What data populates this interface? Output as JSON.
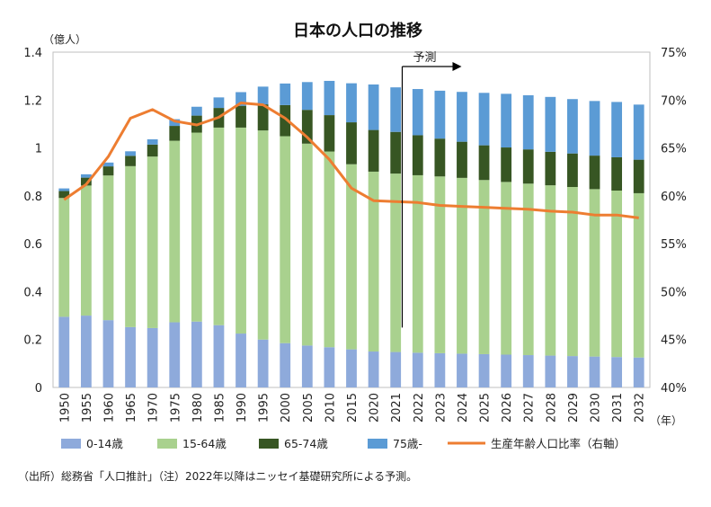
{
  "chart_data": {
    "type": "bar",
    "stacked": true,
    "title": "日本の人口の推移",
    "left_axis_unit": "（億人）",
    "x_axis_unit": "（年）",
    "categories": [
      "1950",
      "1955",
      "1960",
      "1965",
      "1970",
      "1975",
      "1980",
      "1985",
      "1990",
      "1995",
      "2000",
      "2005",
      "2010",
      "2015",
      "2020",
      "2021",
      "2022",
      "2023",
      "2024",
      "2025",
      "2026",
      "2027",
      "2028",
      "2029",
      "2030",
      "2031",
      "2032"
    ],
    "ylim": [
      0,
      1.4
    ],
    "y_ticks": [
      0,
      0.2,
      0.4,
      0.6,
      0.8,
      1,
      1.2,
      1.4
    ],
    "y_tick_labels": [
      "0",
      "0.2",
      "0.4",
      "0.6",
      "0.8",
      "1",
      "1.2",
      "1.4"
    ],
    "y2lim": [
      40,
      75
    ],
    "y2_ticks": [
      40,
      45,
      50,
      55,
      60,
      65,
      70,
      75
    ],
    "y2_tick_labels": [
      "40%",
      "45%",
      "50%",
      "55%",
      "60%",
      "65%",
      "70%",
      "75%"
    ],
    "series": [
      {
        "name": "0-14歳",
        "color": "#8eaadb",
        "values": [
          0.295,
          0.3,
          0.281,
          0.252,
          0.248,
          0.272,
          0.275,
          0.26,
          0.225,
          0.2,
          0.185,
          0.175,
          0.168,
          0.159,
          0.15,
          0.148,
          0.145,
          0.143,
          0.141,
          0.139,
          0.137,
          0.135,
          0.133,
          0.131,
          0.129,
          0.127,
          0.125
        ]
      },
      {
        "name": "15-64歳",
        "color": "#a9d18e",
        "values": [
          0.496,
          0.543,
          0.604,
          0.672,
          0.716,
          0.758,
          0.789,
          0.825,
          0.86,
          0.873,
          0.864,
          0.843,
          0.817,
          0.773,
          0.751,
          0.745,
          0.741,
          0.738,
          0.734,
          0.727,
          0.721,
          0.716,
          0.711,
          0.706,
          0.699,
          0.695,
          0.686
        ]
      },
      {
        "name": "65-74歳",
        "color": "#375623",
        "values": [
          0.029,
          0.033,
          0.038,
          0.043,
          0.05,
          0.062,
          0.071,
          0.082,
          0.091,
          0.109,
          0.13,
          0.141,
          0.152,
          0.175,
          0.174,
          0.174,
          0.167,
          0.158,
          0.151,
          0.145,
          0.144,
          0.143,
          0.14,
          0.14,
          0.14,
          0.139,
          0.14
        ]
      },
      {
        "name": "75歳-",
        "color": "#5b9bd5",
        "values": [
          0.011,
          0.014,
          0.016,
          0.019,
          0.022,
          0.028,
          0.037,
          0.044,
          0.057,
          0.074,
          0.09,
          0.116,
          0.143,
          0.163,
          0.19,
          0.186,
          0.193,
          0.2,
          0.208,
          0.219,
          0.224,
          0.226,
          0.229,
          0.227,
          0.228,
          0.231,
          0.23
        ]
      }
    ],
    "line_series": {
      "name": "生産年齢人口比率（右軸）",
      "color": "#ed7d31",
      "axis": "right",
      "values": [
        59.6,
        61.2,
        64.1,
        68.1,
        69.0,
        67.8,
        67.4,
        68.2,
        69.7,
        69.5,
        68.1,
        66.1,
        63.8,
        60.8,
        59.5,
        59.4,
        59.3,
        59.0,
        58.9,
        58.8,
        58.7,
        58.6,
        58.4,
        58.3,
        58.0,
        58.0,
        57.7
      ]
    },
    "annotation": {
      "text": "予測",
      "from_category": "2022"
    },
    "legend_position": "bottom",
    "grid": false
  },
  "source_note": "（出所）総務省「人口推計」（注）2022年以降はニッセイ基礎研究所による予測。"
}
